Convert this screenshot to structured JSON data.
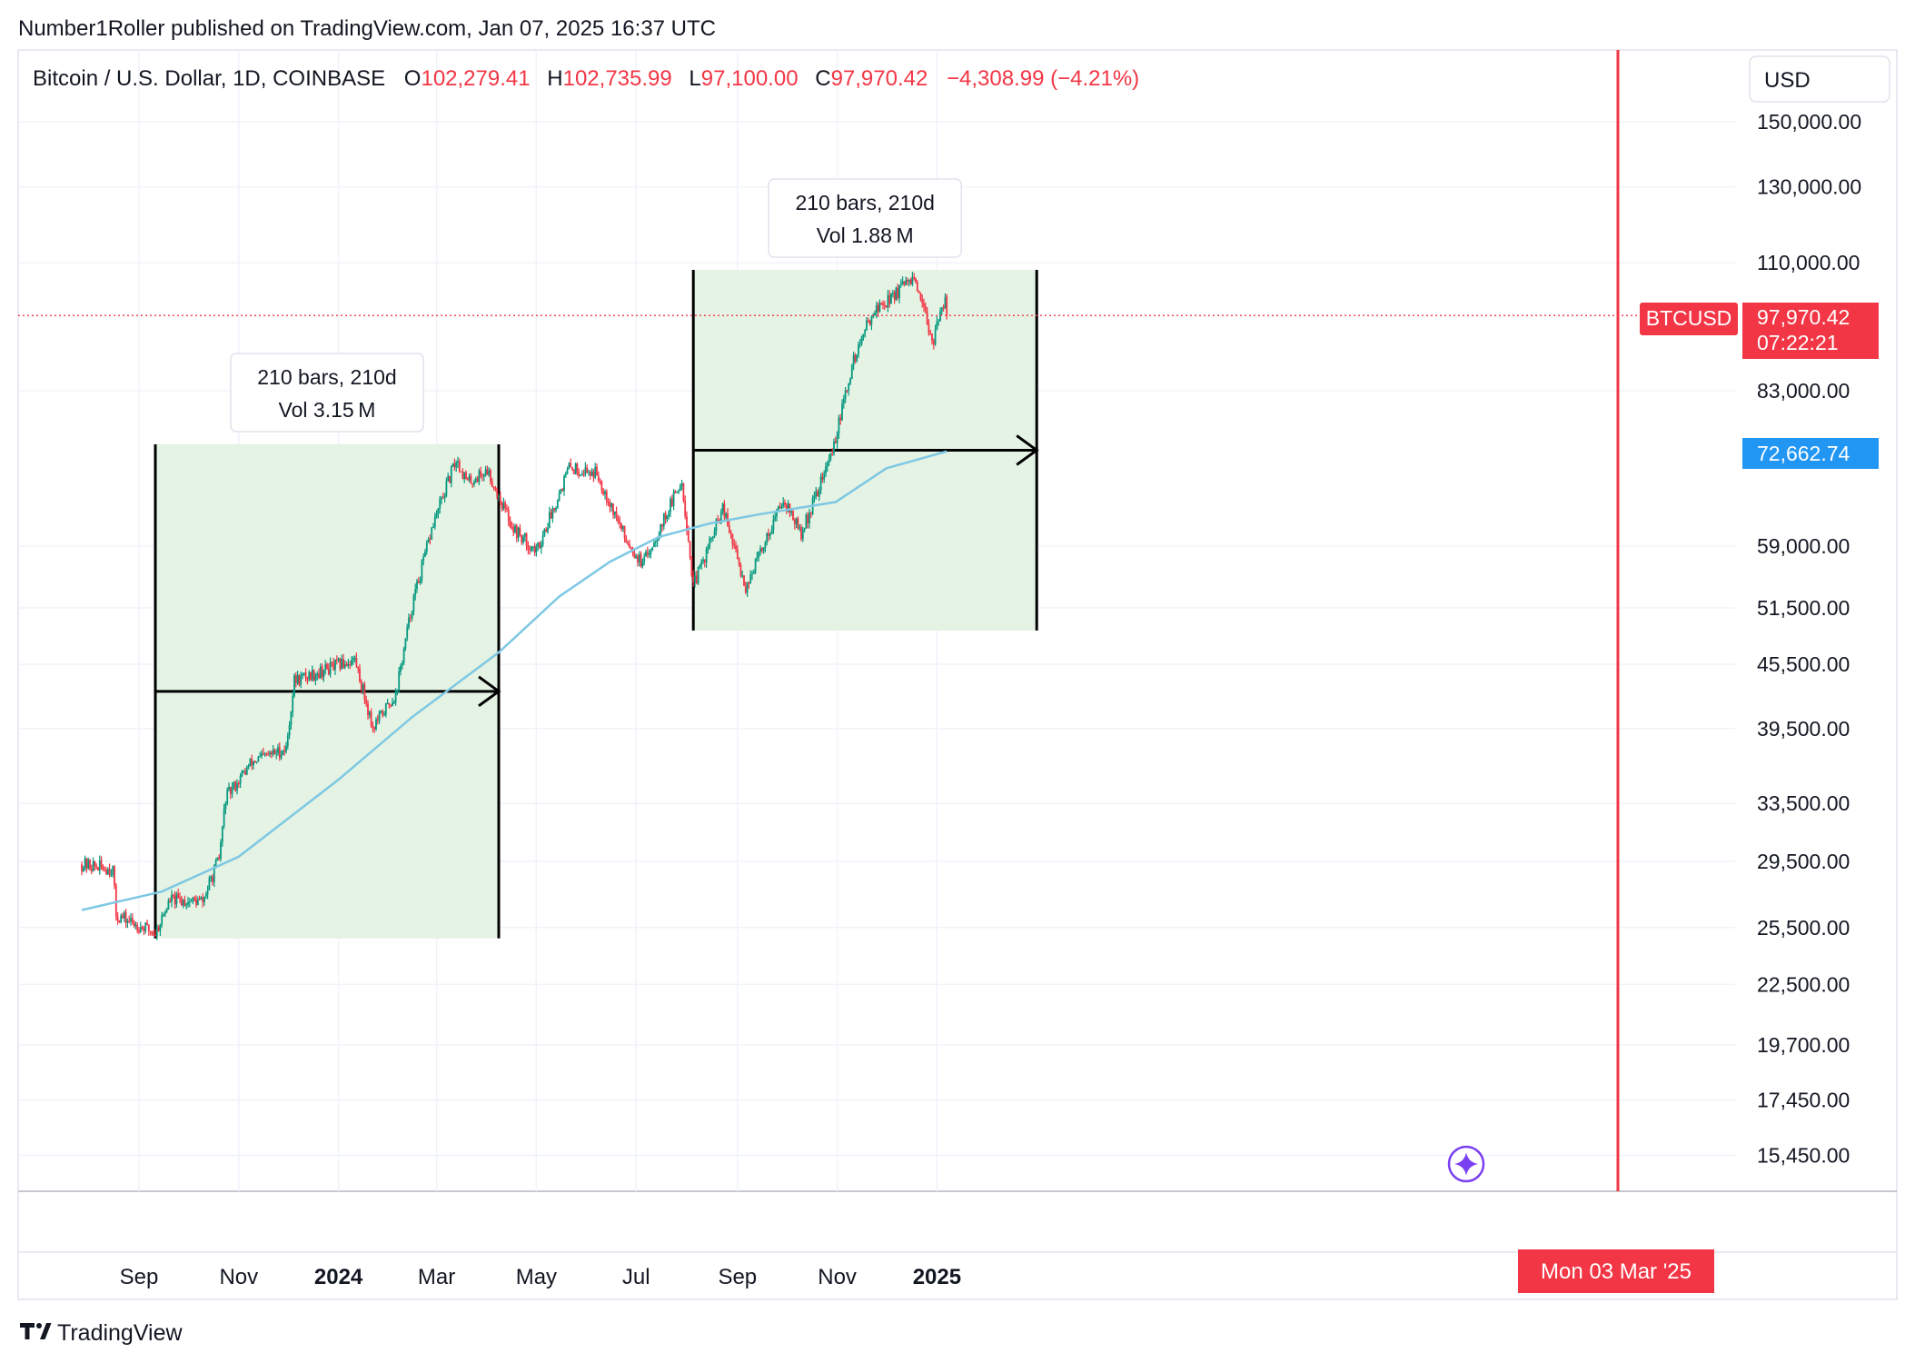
{
  "header": {
    "publisher": "Number1Roller published on TradingView.com, Jan 07, 2025 16:37 UTC"
  },
  "legend": {
    "symbol": "Bitcoin / U.S. Dollar, 1D, COINBASE",
    "open_prefix": "O",
    "open": "102,279.41",
    "high_prefix": "H",
    "high": "102,735.99",
    "low_prefix": "L",
    "low": "97,100.00",
    "close_prefix": "C",
    "close": "97,970.42",
    "change": "−4,308.99 (−4.21%)"
  },
  "currency_button": "USD",
  "price_axis": {
    "ticks": [
      "150,000.00",
      "130,000.00",
      "110,000.00",
      "83,000.00",
      "59,000.00",
      "51,500.00",
      "45,500.00",
      "39,500.00",
      "33,500.00",
      "29,500.00",
      "25,500.00",
      "22,500.00",
      "19,700.00",
      "17,450.00",
      "15,450.00"
    ],
    "last_label": "BTCUSD",
    "last_price": "97,970.42",
    "countdown": "07:22:21",
    "ma_price": "72,662.74"
  },
  "time_axis": {
    "labels": [
      "Sep",
      "Nov",
      "2024",
      "Mar",
      "May",
      "Jul",
      "Sep",
      "Nov",
      "2025"
    ],
    "bold_labels": [
      "2024",
      "2025"
    ],
    "cursor_label": "Mon 03 Mar '25"
  },
  "annotations": [
    {
      "line1": "210 bars, 210d",
      "line2": "Vol 3.15 M"
    },
    {
      "line1": "210 bars, 210d",
      "line2": "Vol 1.88 M"
    }
  ],
  "footer": {
    "brand": "TradingView"
  },
  "colors": {
    "up": "#089981",
    "down": "#f23645",
    "ma": "#7ec8e3",
    "range_fill": "#e3f2e3",
    "cursor": "#f23645",
    "ma_label": "#2962ff"
  },
  "chart_data": {
    "type": "candlestick",
    "title": "Bitcoin / U.S. Dollar, 1D, COINBASE",
    "scale": "log",
    "y_range": [
      14500,
      165000
    ],
    "x_range": [
      "2023-07-28",
      "2025-03-07"
    ],
    "series": [
      {
        "name": "BTCUSD",
        "approx_close_path": [
          [
            "2023-07-28",
            29300
          ],
          [
            "2023-08-16",
            29000
          ],
          [
            "2023-08-18",
            26200
          ],
          [
            "2023-09-11",
            25200
          ],
          [
            "2023-09-20",
            27100
          ],
          [
            "2023-10-10",
            27000
          ],
          [
            "2023-10-20",
            29700
          ],
          [
            "2023-10-24",
            33900
          ],
          [
            "2023-11-09",
            36700
          ],
          [
            "2023-11-30",
            37800
          ],
          [
            "2023-12-05",
            43900
          ],
          [
            "2024-01-11",
            46000
          ],
          [
            "2024-01-22",
            39600
          ],
          [
            "2024-02-05",
            42600
          ],
          [
            "2024-02-15",
            51800
          ],
          [
            "2024-02-28",
            62000
          ],
          [
            "2024-03-13",
            71400
          ],
          [
            "2024-03-20",
            67800
          ],
          [
            "2024-04-01",
            69700
          ],
          [
            "2024-04-17",
            61300
          ],
          [
            "2024-05-01",
            58300
          ],
          [
            "2024-05-21",
            70100
          ],
          [
            "2024-06-07",
            69300
          ],
          [
            "2024-06-24",
            60300
          ],
          [
            "2024-07-05",
            56600
          ],
          [
            "2024-07-29",
            68200
          ],
          [
            "2024-08-05",
            54000
          ],
          [
            "2024-08-23",
            64000
          ],
          [
            "2024-09-06",
            53900
          ],
          [
            "2024-09-29",
            65600
          ],
          [
            "2024-10-10",
            60500
          ],
          [
            "2024-10-29",
            72700
          ],
          [
            "2024-11-11",
            88700
          ],
          [
            "2024-11-22",
            98400
          ],
          [
            "2024-12-17",
            106100
          ],
          [
            "2024-12-30",
            92700
          ],
          [
            "2025-01-06",
            102279
          ],
          [
            "2025-01-07",
            97970
          ]
        ]
      },
      {
        "name": "MA",
        "values": [
          [
            "2023-07-28",
            26500
          ],
          [
            "2023-09-15",
            27600
          ],
          [
            "2023-11-01",
            29800
          ],
          [
            "2024-01-01",
            35300
          ],
          [
            "2024-02-15",
            40500
          ],
          [
            "2024-04-08",
            46700
          ],
          [
            "2024-05-15",
            52800
          ],
          [
            "2024-06-15",
            57000
          ],
          [
            "2024-07-15",
            60200
          ],
          [
            "2024-08-15",
            62000
          ],
          [
            "2024-09-15",
            63300
          ],
          [
            "2024-10-31",
            65000
          ],
          [
            "2024-12-01",
            70000
          ],
          [
            "2025-01-07",
            72662.74
          ]
        ]
      }
    ],
    "ranges": [
      {
        "from": "2023-09-11",
        "to": "2024-04-08",
        "high": 73800,
        "low": 24900,
        "bars": 210,
        "days": 210,
        "volume": "3.15 M"
      },
      {
        "from": "2024-08-05",
        "to": "2025-03-03",
        "high": 108300,
        "low": 49000,
        "bars": 210,
        "days": 210,
        "volume": "1.88 M"
      }
    ],
    "last_price": 97970.42,
    "ma_last": 72662.74
  }
}
